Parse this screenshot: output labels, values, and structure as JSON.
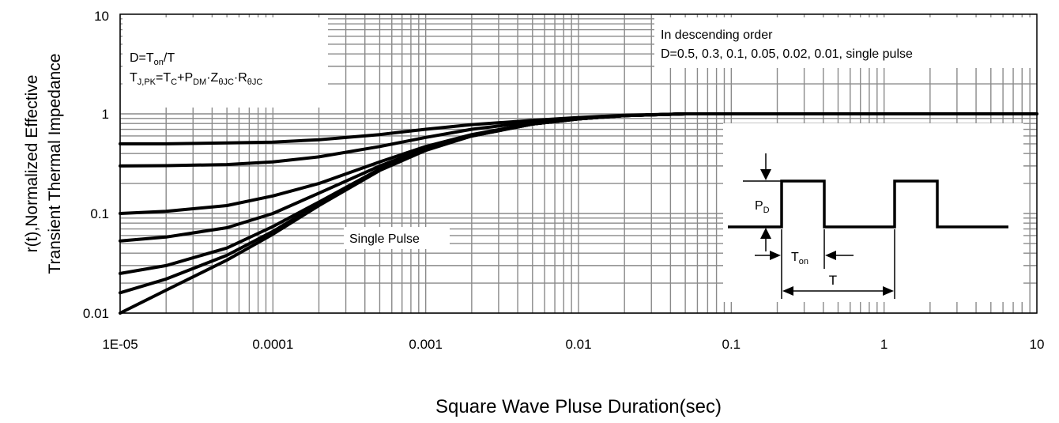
{
  "chart_data": {
    "type": "line",
    "title": "",
    "xlabel": "Square Wave Pluse Duration(sec)",
    "ylabel_line1": "r(t),Normalized Effective",
    "ylabel_line2": "Transient Thermal Impedance",
    "x_scale": "log",
    "y_scale": "log",
    "xlim": [
      1e-05,
      10
    ],
    "ylim": [
      0.01,
      10
    ],
    "x_ticks": [
      {
        "value": 1e-05,
        "label": "1E-05"
      },
      {
        "value": 0.0001,
        "label": "0.0001"
      },
      {
        "value": 0.001,
        "label": "0.001"
      },
      {
        "value": 0.01,
        "label": "0.01"
      },
      {
        "value": 0.1,
        "label": "0.1"
      },
      {
        "value": 1,
        "label": "1"
      },
      {
        "value": 10,
        "label": "10"
      }
    ],
    "y_ticks": [
      {
        "value": 0.01,
        "label": "0.01"
      },
      {
        "value": 0.1,
        "label": "0.1"
      },
      {
        "value": 1,
        "label": "1"
      },
      {
        "value": 10,
        "label": "10"
      }
    ],
    "grid": true,
    "legend": "none",
    "line_color": "#000000",
    "x": [
      1e-05,
      2e-05,
      5e-05,
      0.0001,
      0.0002,
      0.0005,
      0.001,
      0.002,
      0.005,
      0.01,
      0.02,
      0.05,
      0.1,
      0.2,
      0.5,
      1,
      2,
      5,
      10
    ],
    "series": [
      {
        "d": 0.5,
        "values": [
          0.5,
          0.5,
          0.51,
          0.52,
          0.55,
          0.62,
          0.7,
          0.78,
          0.86,
          0.92,
          0.97,
          1,
          1,
          1,
          1,
          1,
          1,
          1,
          1
        ]
      },
      {
        "d": 0.3,
        "values": [
          0.3,
          0.302,
          0.31,
          0.33,
          0.37,
          0.47,
          0.58,
          0.7,
          0.83,
          0.9,
          0.96,
          1,
          1,
          1,
          1,
          1,
          1,
          1,
          1
        ]
      },
      {
        "d": 0.1,
        "values": [
          0.1,
          0.105,
          0.12,
          0.15,
          0.2,
          0.33,
          0.47,
          0.62,
          0.8,
          0.89,
          0.96,
          1,
          1,
          1,
          1,
          1,
          1,
          1,
          1
        ]
      },
      {
        "d": 0.05,
        "values": [
          0.053,
          0.058,
          0.072,
          0.1,
          0.16,
          0.3,
          0.45,
          0.61,
          0.79,
          0.89,
          0.96,
          1,
          1,
          1,
          1,
          1,
          1,
          1,
          1
        ]
      },
      {
        "d": 0.02,
        "values": [
          0.025,
          0.03,
          0.045,
          0.074,
          0.13,
          0.28,
          0.44,
          0.6,
          0.79,
          0.89,
          0.96,
          1,
          1,
          1,
          1,
          1,
          1,
          1,
          1
        ]
      },
      {
        "d": 0.01,
        "values": [
          0.016,
          0.022,
          0.038,
          0.066,
          0.125,
          0.275,
          0.44,
          0.6,
          0.79,
          0.89,
          0.96,
          1,
          1,
          1,
          1,
          1,
          1,
          1,
          1
        ]
      },
      {
        "d": "single",
        "values": [
          0.01,
          0.017,
          0.034,
          0.062,
          0.12,
          0.27,
          0.43,
          0.6,
          0.79,
          0.89,
          0.96,
          1,
          1,
          1,
          1,
          1,
          1,
          1,
          1
        ]
      }
    ],
    "annotations": {
      "formula_d": {
        "main": "D=T",
        "sub": "on",
        "tail": "/T"
      },
      "formula_tj": [
        {
          "t": "T",
          "s": false
        },
        {
          "t": "J,PK",
          "s": true
        },
        {
          "t": "=T",
          "s": false
        },
        {
          "t": "C",
          "s": true
        },
        {
          "t": "+P",
          "s": false
        },
        {
          "t": "DM",
          "s": true
        },
        {
          "t": "·Z",
          "s": false
        },
        {
          "t": "θJC",
          "s": true
        },
        {
          "t": "·R",
          "s": false
        },
        {
          "t": "θJC",
          "s": true
        }
      ],
      "order_title": "In descending order",
      "order_list": "D=0.5, 0.3, 0.1, 0.05, 0.02, 0.01, single pulse",
      "single_pulse": "Single Pulse"
    },
    "inset": {
      "pd_main": "P",
      "pd_sub": "D",
      "ton_main": "T",
      "ton_sub": "on",
      "t_label": "T"
    }
  }
}
